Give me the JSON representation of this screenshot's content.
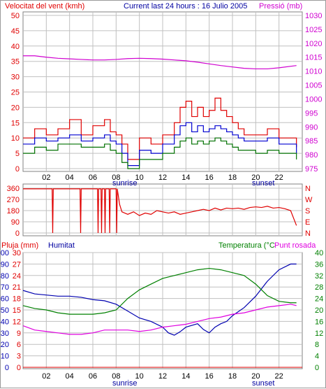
{
  "header": {
    "wind_label": "Velocitat del vent (kmh)",
    "current_label": "Current last 24 hours : 16 Julio 2005",
    "pressure_label": "Pressió (mb)"
  },
  "hour_ticks": [
    "02",
    "04",
    "06",
    "08",
    "10",
    "12",
    "14",
    "16",
    "18",
    "20",
    "22"
  ],
  "events": {
    "sunrise": "sunrise",
    "sunset": "sunset"
  },
  "colors": {
    "wind_max": "#e00000",
    "wind_avg": "#0000d0",
    "wind_min": "#007000",
    "pressure": "#d000d0",
    "direction": "#e00000",
    "humidity": "#0000b0",
    "temperature": "#008000",
    "dewpoint": "#e000e0",
    "rain": "#e00000",
    "grid": "#c0c0c0",
    "axis_text": "#000000"
  },
  "chart_data": [
    {
      "type": "line",
      "title": "Current last 24 hours : 16 Julio 2005",
      "x_unit": "hours",
      "x_range": [
        0,
        24
      ],
      "y_left": {
        "label": "Velocitat del vent (kmh)",
        "range": [
          0,
          50
        ],
        "ticks": [
          "0",
          "5",
          "10",
          "15",
          "20",
          "25",
          "30",
          "35",
          "40",
          "45",
          "50"
        ]
      },
      "y_right": {
        "label": "Pressió (mb)",
        "range": [
          975,
          1030
        ],
        "ticks": [
          "975",
          "980",
          "985",
          "990",
          "995",
          "1000",
          "1005",
          "1010",
          "1015",
          "1020",
          "1025",
          "1030"
        ]
      },
      "series": [
        {
          "name": "Pressió (mb)",
          "axis": "right",
          "x": [
            0,
            1,
            2,
            3,
            4,
            5,
            6,
            7,
            8,
            9,
            10,
            11,
            12,
            13,
            14,
            15,
            16,
            17,
            18,
            19,
            20,
            21,
            22,
            23.5
          ],
          "values": [
            1015.5,
            1015.5,
            1015,
            1014.6,
            1014.4,
            1014.2,
            1014,
            1014,
            1014.2,
            1014.5,
            1014.6,
            1014.5,
            1014.3,
            1014,
            1013.7,
            1013.2,
            1012.6,
            1012,
            1011.5,
            1011,
            1010.8,
            1010.8,
            1011.2,
            1012
          ]
        },
        {
          "name": "wind max",
          "axis": "left",
          "x": [
            0,
            1,
            2,
            3,
            4,
            5,
            6,
            7,
            7.5,
            8,
            8.5,
            9,
            10,
            11,
            12,
            13,
            13.5,
            14,
            14.5,
            15,
            15.5,
            16,
            16.5,
            17,
            17.5,
            18,
            18.5,
            19,
            20,
            21,
            22,
            23.5
          ],
          "values": [
            10,
            13,
            11,
            13,
            16,
            11,
            14,
            16,
            12,
            11,
            8,
            3,
            10,
            8,
            11,
            15,
            20,
            22,
            17,
            20,
            17,
            19,
            23,
            19,
            17,
            15,
            13,
            11,
            11,
            13,
            10,
            7
          ]
        },
        {
          "name": "wind avg",
          "axis": "left",
          "x": [
            0,
            1,
            2,
            3,
            4,
            5,
            6,
            7,
            7.5,
            8,
            8.5,
            9,
            10,
            11,
            12,
            13,
            13.5,
            14,
            14.5,
            15,
            15.5,
            16,
            16.5,
            17,
            17.5,
            18,
            18.5,
            19,
            20,
            21,
            22,
            23.5
          ],
          "values": [
            8,
            10,
            9,
            10,
            11,
            9,
            10,
            11,
            9,
            8,
            5,
            1,
            6,
            5,
            8,
            11,
            14,
            15,
            12,
            14,
            12,
            13,
            14,
            13,
            12,
            11,
            10,
            9,
            9,
            10,
            8,
            5
          ]
        },
        {
          "name": "wind min",
          "axis": "left",
          "x": [
            0,
            1,
            2,
            3,
            4,
            5,
            6,
            7,
            7.5,
            8,
            8.5,
            9,
            10,
            11,
            12,
            13,
            13.5,
            14,
            14.5,
            15,
            15.5,
            16,
            16.5,
            17,
            17.5,
            18,
            18.5,
            19,
            20,
            21,
            22,
            23.5
          ],
          "values": [
            5,
            7,
            6,
            8,
            8,
            7,
            7,
            8,
            6,
            5,
            2,
            0,
            3,
            3,
            5,
            7,
            9,
            10,
            8,
            9,
            8,
            9,
            10,
            9,
            8,
            7,
            6,
            6,
            5,
            6,
            5,
            3
          ]
        }
      ]
    },
    {
      "type": "line",
      "x_unit": "hours",
      "x_range": [
        0,
        24
      ],
      "y_left": {
        "range": [
          0,
          360
        ],
        "ticks": [
          "0",
          "90",
          "180",
          "270",
          "360"
        ]
      },
      "y_right": {
        "ticks": [
          "N",
          "E",
          "S",
          "W",
          "N"
        ]
      },
      "series": [
        {
          "name": "wind direction",
          "x": [
            0,
            2.5,
            2.55,
            2.6,
            4.9,
            4.95,
            5,
            6.4,
            6.45,
            6.5,
            6.7,
            6.75,
            6.8,
            7,
            7.05,
            7.1,
            7.4,
            7.45,
            7.5,
            8.0,
            8.05,
            8.1,
            8.3,
            8.5,
            9,
            9.5,
            10,
            10.5,
            11,
            11.5,
            12,
            12.5,
            13,
            13.5,
            14,
            14.5,
            15,
            15.5,
            16,
            16.5,
            17,
            17.5,
            18,
            18.5,
            19,
            19.5,
            20,
            20.5,
            21,
            21.5,
            22,
            22.5,
            23,
            23.5
          ],
          "values": [
            355,
            355,
            0,
            355,
            355,
            0,
            355,
            355,
            0,
            355,
            355,
            0,
            355,
            355,
            0,
            355,
            355,
            0,
            355,
            355,
            0,
            355,
            230,
            170,
            150,
            170,
            140,
            160,
            150,
            180,
            170,
            160,
            170,
            150,
            160,
            170,
            180,
            190,
            180,
            200,
            185,
            200,
            195,
            200,
            190,
            205,
            210,
            205,
            215,
            200,
            205,
            195,
            180,
            60
          ]
        }
      ]
    },
    {
      "type": "line",
      "x_unit": "hours",
      "x_range": [
        0,
        24
      ],
      "y_left": {
        "label": "Pluja (mm)",
        "ticks": [
          "0",
          "3",
          "6",
          "9",
          "12",
          "15",
          "18",
          "21",
          "24",
          "27",
          "30"
        ]
      },
      "y_left_2": {
        "label": "Humitat",
        "range": [
          0,
          100
        ],
        "ticks": [
          "0",
          "10",
          "20",
          "30",
          "40",
          "50",
          "60",
          "70",
          "80",
          "90",
          "100"
        ]
      },
      "y_right": {
        "label": "Temperatura (°C",
        "range": [
          0,
          40
        ],
        "ticks": [
          "0",
          "4",
          "8",
          "12",
          "16",
          "20",
          "24",
          "28",
          "32",
          "36",
          "40"
        ]
      },
      "series": [
        {
          "name": "Humitat",
          "axis": "humidity",
          "x": [
            0,
            1,
            2,
            3,
            4,
            5,
            6,
            7,
            8,
            9,
            10,
            11,
            12,
            12.5,
            13,
            13.5,
            14,
            15,
            15.5,
            16,
            16.5,
            17,
            17.5,
            18,
            19,
            20,
            21,
            22,
            23,
            23.5
          ],
          "values": [
            67,
            64,
            63,
            62,
            62,
            61,
            59,
            58,
            55,
            49,
            43,
            40,
            35,
            30,
            28,
            31,
            35,
            38,
            33,
            30,
            35,
            38,
            40,
            45,
            52,
            62,
            75,
            85,
            90,
            90
          ]
        },
        {
          "name": "Temperatura (°C",
          "axis": "right",
          "x": [
            0,
            1,
            2,
            3,
            4,
            5,
            6,
            7,
            8,
            9,
            10,
            11,
            12,
            13,
            14,
            15,
            16,
            17,
            18,
            19,
            20,
            21,
            22,
            23,
            23.5
          ],
          "values": [
            21.5,
            20.5,
            20,
            19,
            18.5,
            18.5,
            18.5,
            19,
            20,
            24,
            27,
            29,
            31,
            32,
            33,
            34,
            34.5,
            34,
            33,
            32,
            29,
            25,
            23,
            22.5,
            22.5
          ]
        },
        {
          "name": "Punt rosada",
          "axis": "right",
          "x": [
            0,
            1,
            2,
            3,
            4,
            5,
            6,
            7,
            8,
            9,
            10,
            11,
            12,
            13,
            14,
            15,
            16,
            17,
            18,
            19,
            20,
            21,
            22,
            23,
            23.5
          ],
          "values": [
            14.5,
            13,
            12.5,
            12,
            11.5,
            11.5,
            12,
            13,
            13,
            13,
            12.5,
            13,
            14,
            14.5,
            15,
            16,
            17,
            17.5,
            18.5,
            19,
            20,
            21,
            21.5,
            22,
            21.5
          ]
        }
      ]
    }
  ],
  "panel2": {
    "dir_ticks": [
      "360",
      "270",
      "180",
      "90",
      "0"
    ],
    "compass": [
      "N",
      "W",
      "S",
      "E",
      "N"
    ]
  },
  "panel3": {
    "rain_label": "Pluja (mm)",
    "humidity_label": "Humitat",
    "temperature_label": "Temperatura (°C",
    "dewpoint_label": "Punt rosada",
    "rain_ticks": [
      "30",
      "27",
      "24",
      "21",
      "18",
      "15",
      "12",
      "9",
      "6",
      "3",
      "0"
    ],
    "humidity_ticks": [
      "100",
      "90",
      "80",
      "70",
      "60",
      "50",
      "40",
      "30",
      "20",
      "10",
      "0"
    ],
    "temp_ticks": [
      "40",
      "36",
      "32",
      "28",
      "24",
      "20",
      "16",
      "12",
      "8",
      "4",
      "0"
    ]
  }
}
